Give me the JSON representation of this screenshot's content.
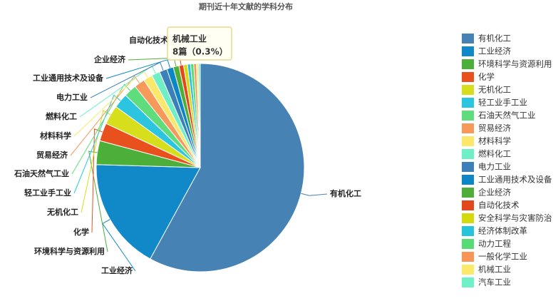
{
  "chart_data": {
    "type": "pie",
    "title": "期刊近十年文献的学科分布",
    "categories": [
      "有机化工",
      "工业经济",
      "环境科学与资源利用",
      "化学",
      "无机化工",
      "轻工业手工业",
      "石油天然气工业",
      "贸易经济",
      "材料科学",
      "燃料化工",
      "电力工业",
      "工业通用技术及设备",
      "企业经济",
      "自动化技术",
      "安全科学与灾害防治",
      "经济体制改革",
      "动力工程",
      "一般化学工业",
      "机械工业",
      "汽车工业"
    ],
    "values": [
      1550,
      467,
      99,
      75,
      80,
      61,
      53,
      45,
      37,
      35,
      32,
      27,
      24,
      19,
      16,
      13,
      13,
      11,
      8,
      8
    ],
    "colors": [
      "#4682b4",
      "#1189c9",
      "#4caf3a",
      "#e8511e",
      "#d7df1c",
      "#2bc5df",
      "#5fdd7c",
      "#f6995a",
      "#fbe86a",
      "#6eefc6",
      "#3d80b9",
      "#0d86c6",
      "#4fae38",
      "#e3481b",
      "#d3da0e",
      "#27c3dc",
      "#57db74",
      "#f69556",
      "#fbea69",
      "#6ff1c7"
    ],
    "legend": "right",
    "tooltip": {
      "name": "机械工业",
      "label": "8篇（0.3%）"
    }
  }
}
